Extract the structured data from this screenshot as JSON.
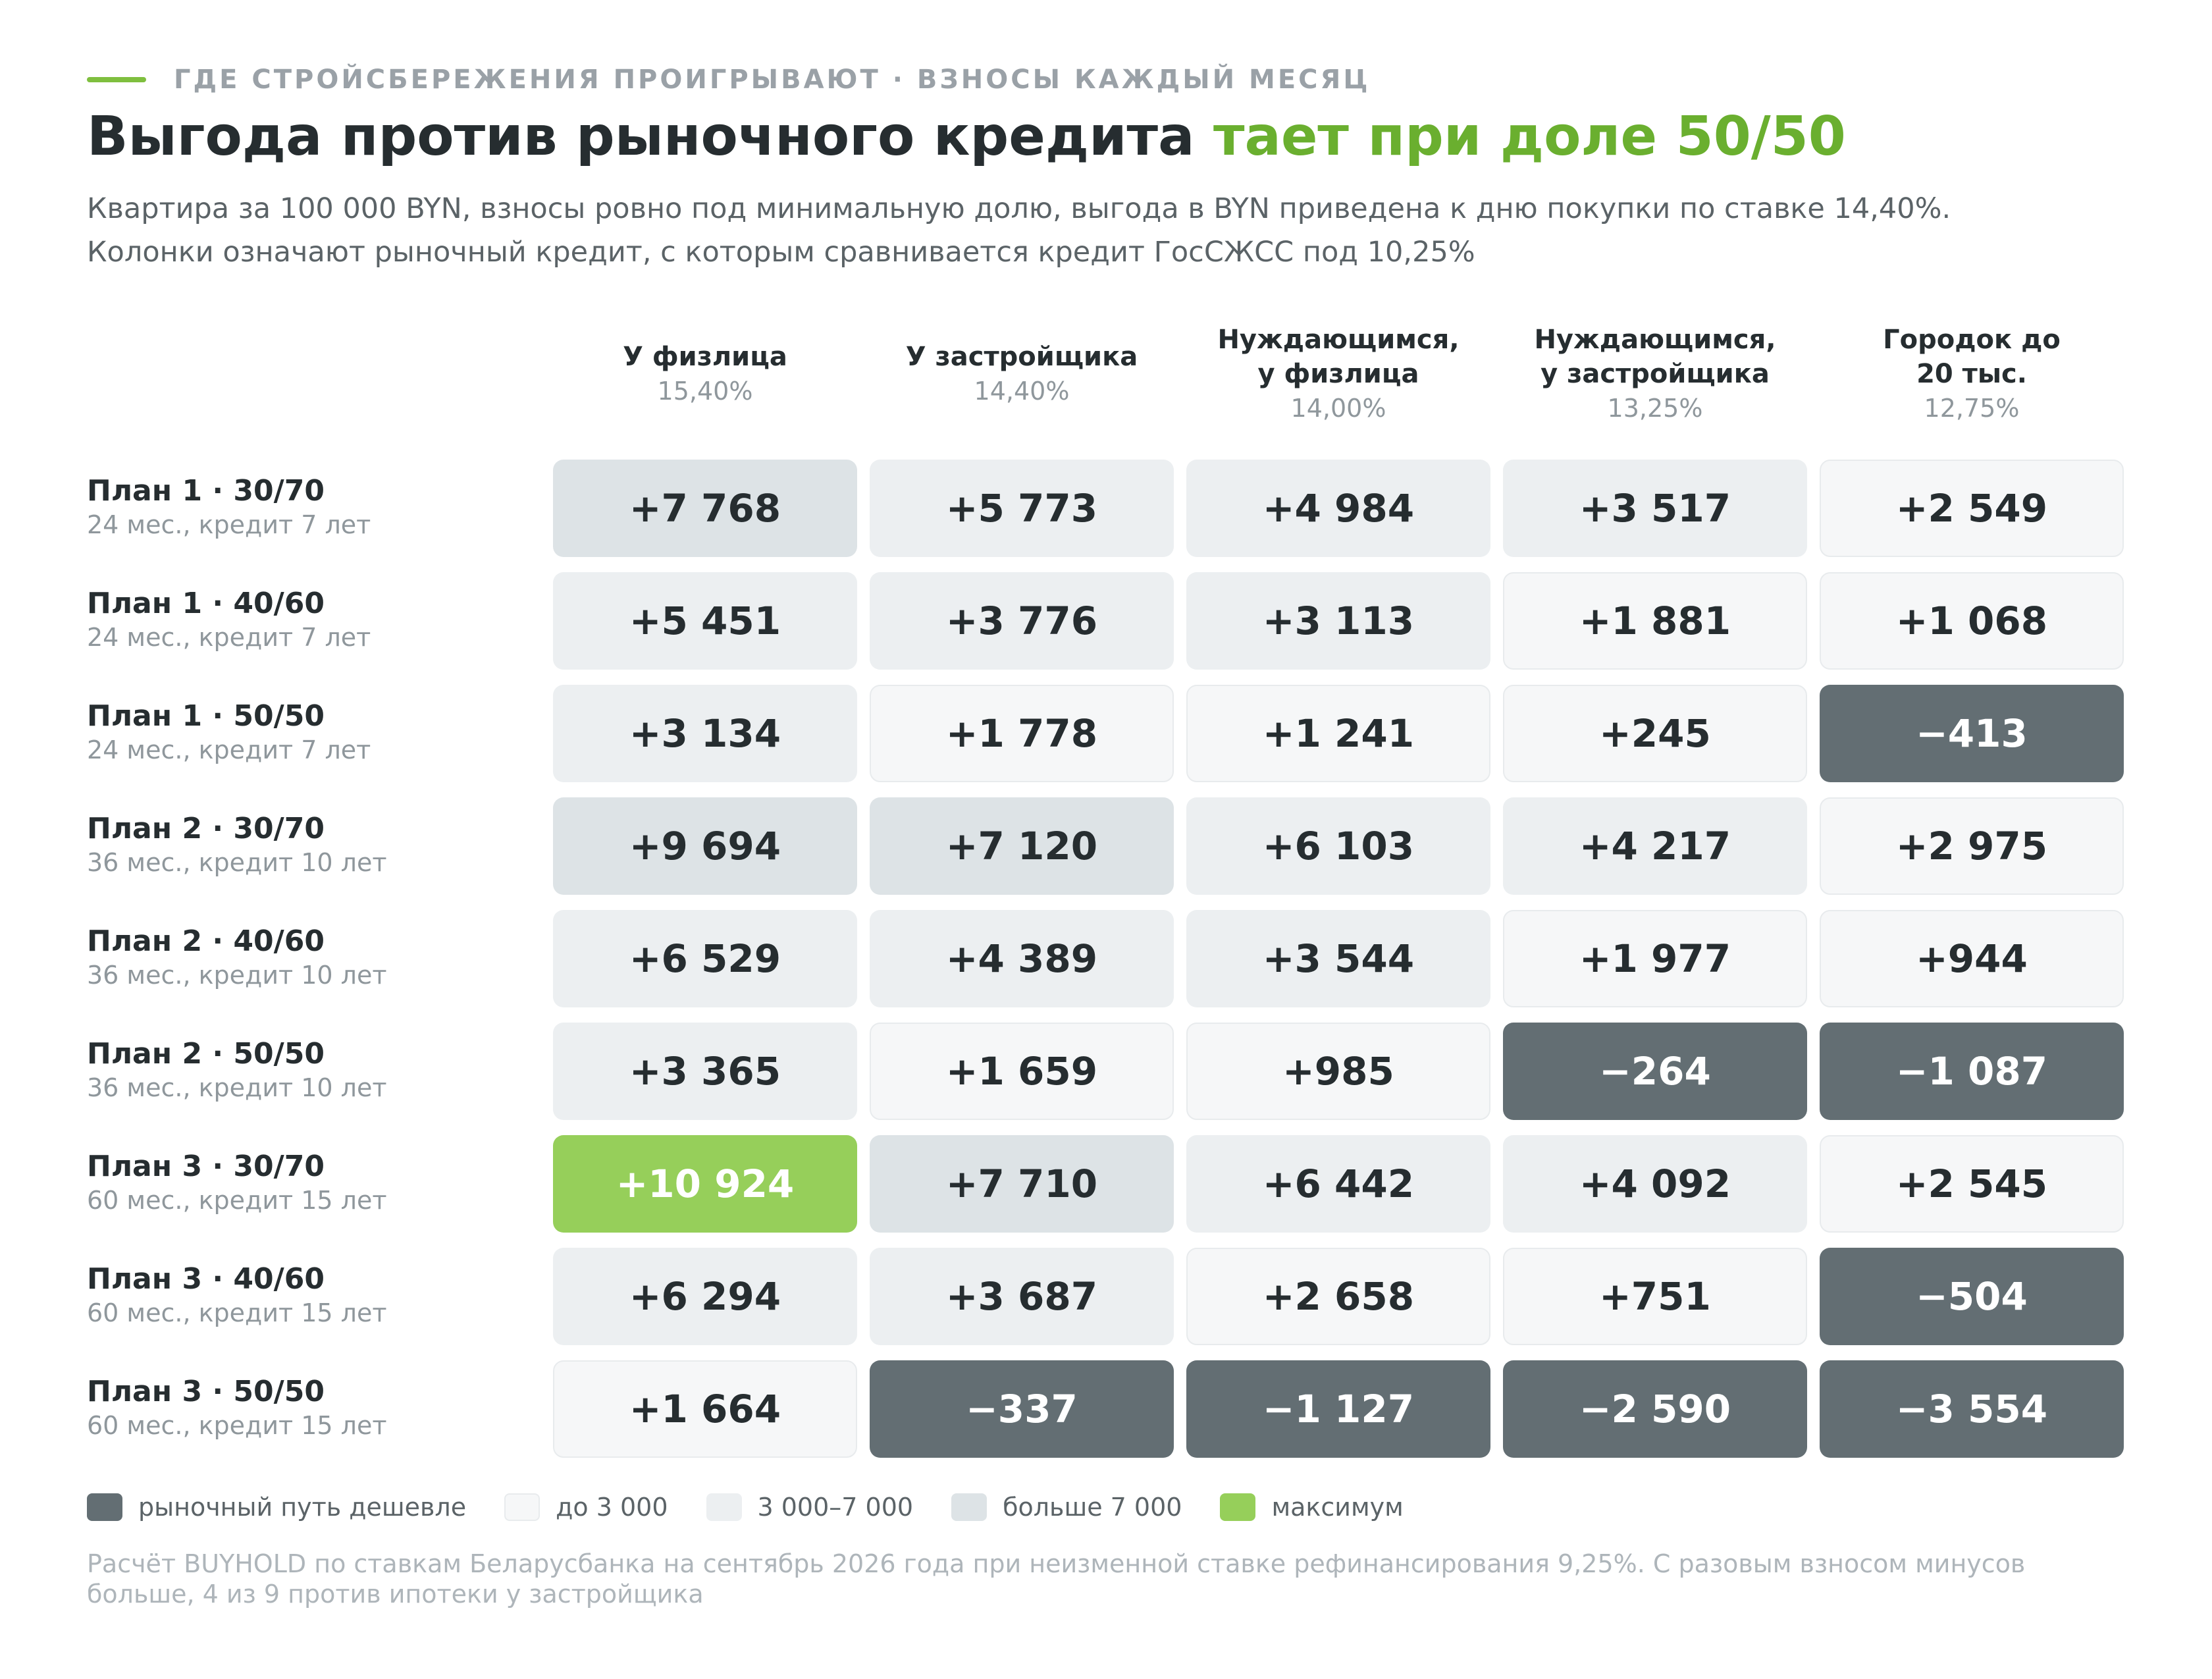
{
  "kicker": "ГДЕ СТРОЙСБЕРЕЖЕНИЯ ПРОИГРЫВАЮТ · ВЗНОСЫ КАЖДЫЙ МЕСЯЦ",
  "title_main": "Выгода против рыночного кредита ",
  "title_accent": "тает при доле 50/50",
  "subtitle_line1": "Квартира за 100 000 BYN, взносы ровно под минимальную долю, выгода в BYN приведена к дню покупки по ставке 14,40%.",
  "subtitle_line2": "Колонки означают рыночный кредит, с которым сравнивается кредит ГосСЖСС под 10,25%",
  "colors": {
    "negative": "#636e73",
    "low": "#f6f7f8",
    "mid": "#eceff1",
    "high": "#dde3e6",
    "max": "#96cf5a",
    "accent": "#6aaf2f"
  },
  "chart_data": {
    "type": "table",
    "columns": [
      {
        "name": "У физлица",
        "rate": "15,40%"
      },
      {
        "name": "У застройщика",
        "rate": "14,40%"
      },
      {
        "name": "Нуждающимся,\nу физлица",
        "rate": "14,00%"
      },
      {
        "name": "Нуждающимся,\nу застройщика",
        "rate": "13,25%"
      },
      {
        "name": "Городок до\n20 тыс.",
        "rate": "12,75%"
      }
    ],
    "rows": [
      {
        "label": "План 1 · 30/70",
        "sub": "24 мес., кредит 7 лет",
        "values": [
          7768,
          5773,
          4984,
          3517,
          2549
        ],
        "display": [
          "+7 768",
          "+5 773",
          "+4 984",
          "+3 517",
          "+2 549"
        ]
      },
      {
        "label": "План 1 · 40/60",
        "sub": "24 мес., кредит 7 лет",
        "values": [
          5451,
          3776,
          3113,
          1881,
          1068
        ],
        "display": [
          "+5 451",
          "+3 776",
          "+3 113",
          "+1 881",
          "+1 068"
        ]
      },
      {
        "label": "План 1 · 50/50",
        "sub": "24 мес., кредит 7 лет",
        "values": [
          3134,
          1778,
          1241,
          245,
          -413
        ],
        "display": [
          "+3 134",
          "+1 778",
          "+1 241",
          "+245",
          "−413"
        ]
      },
      {
        "label": "План 2 · 30/70",
        "sub": "36 мес., кредит 10 лет",
        "values": [
          9694,
          7120,
          6103,
          4217,
          2975
        ],
        "display": [
          "+9 694",
          "+7 120",
          "+6 103",
          "+4 217",
          "+2 975"
        ]
      },
      {
        "label": "План 2 · 40/60",
        "sub": "36 мес., кредит 10 лет",
        "values": [
          6529,
          4389,
          3544,
          1977,
          944
        ],
        "display": [
          "+6 529",
          "+4 389",
          "+3 544",
          "+1 977",
          "+944"
        ]
      },
      {
        "label": "План 2 · 50/50",
        "sub": "36 мес., кредит 10 лет",
        "values": [
          3365,
          1659,
          985,
          -264,
          -1087
        ],
        "display": [
          "+3 365",
          "+1 659",
          "+985",
          "−264",
          "−1 087"
        ]
      },
      {
        "label": "План 3 · 30/70",
        "sub": "60 мес., кредит 15 лет",
        "values": [
          10924,
          7710,
          6442,
          4092,
          2545
        ],
        "display": [
          "+10 924",
          "+7 710",
          "+6 442",
          "+4 092",
          "+2 545"
        ]
      },
      {
        "label": "План 3 · 40/60",
        "sub": "60 мес., кредит 15 лет",
        "values": [
          6294,
          3687,
          2658,
          751,
          -504
        ],
        "display": [
          "+6 294",
          "+3 687",
          "+2 658",
          "+751",
          "−504"
        ]
      },
      {
        "label": "План 3 · 50/50",
        "sub": "60 мес., кредит 15 лет",
        "values": [
          1664,
          -337,
          -1127,
          -2590,
          -3554
        ],
        "display": [
          "+1 664",
          "−337",
          "−1 127",
          "−2 590",
          "−3 554"
        ]
      }
    ]
  },
  "legend": [
    {
      "label": "рыночный путь дешевле",
      "color": "#636e73"
    },
    {
      "label": "до 3 000",
      "color": "#f6f7f8"
    },
    {
      "label": "3 000–7 000",
      "color": "#eceff1"
    },
    {
      "label": "больше 7 000",
      "color": "#dde3e6"
    },
    {
      "label": "максимум",
      "color": "#96cf5a"
    }
  ],
  "note": "Расчёт BUYHOLD по ставкам Беларусбанка на сентябрь 2026 года при неизменной ставке рефинансирования 9,25%. С разовым взносом минусов больше, 4 из 9 против ипотеки у застройщика"
}
